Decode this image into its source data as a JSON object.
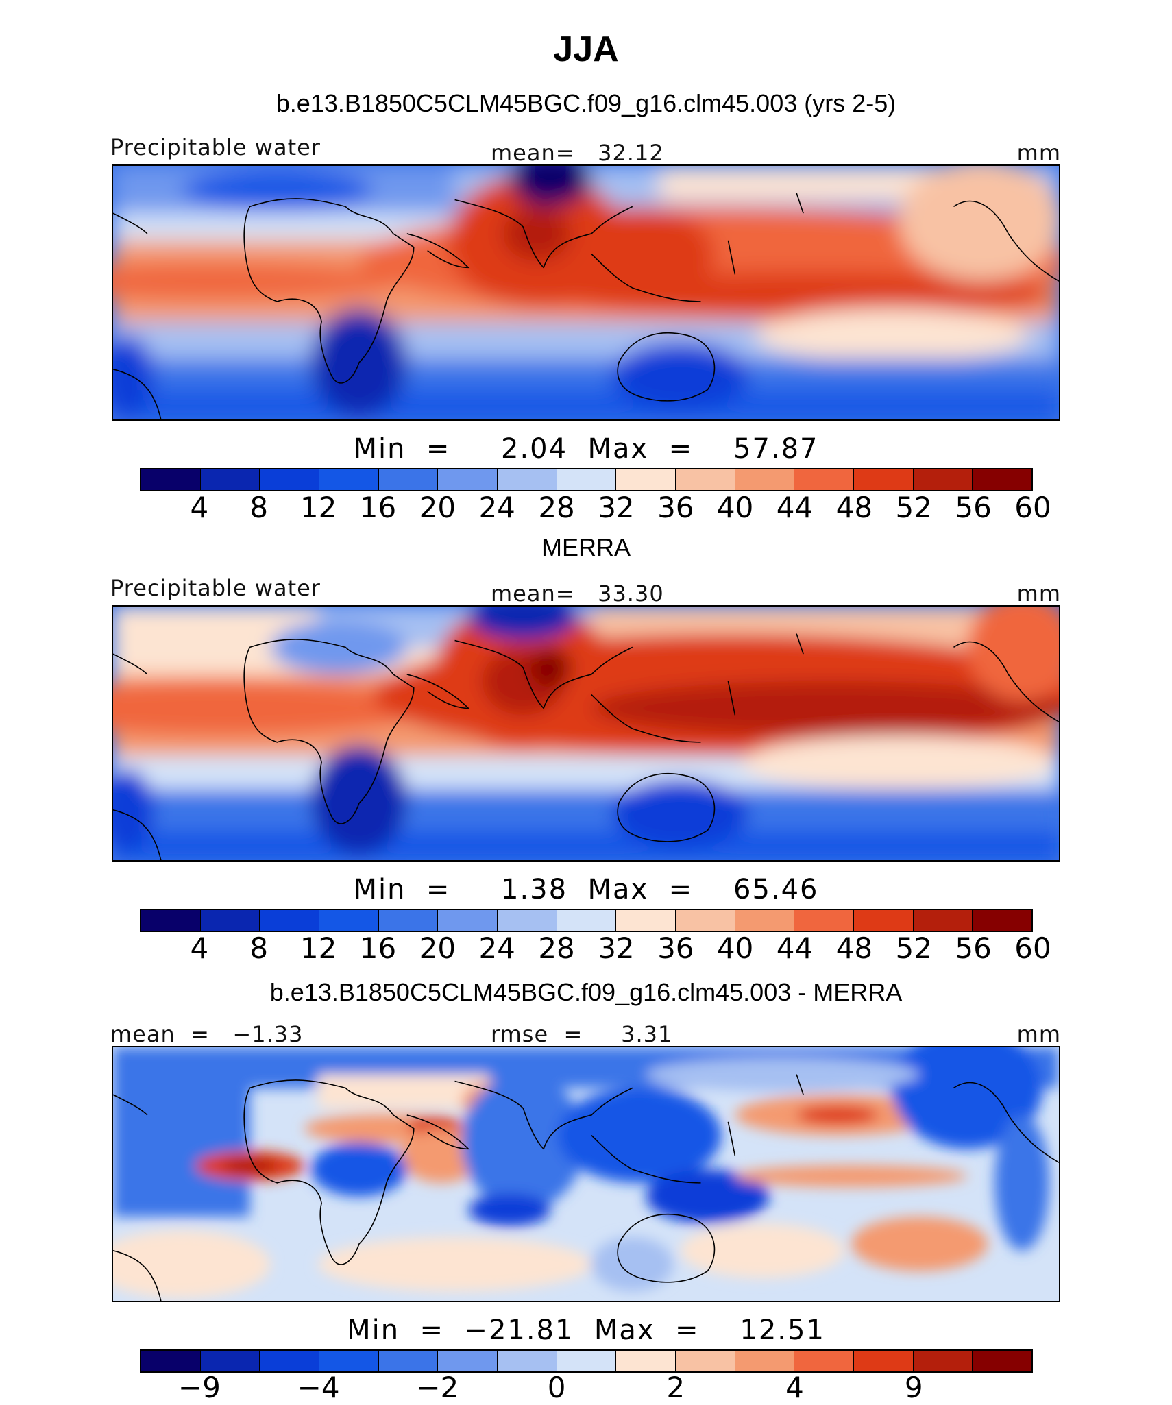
{
  "figure": {
    "title": "JJA"
  },
  "panels": [
    {
      "title": "b.e13.B1850C5CLM45BGC.f09_g16.clm45.003 (yrs 2-5)",
      "left_label": "Precipitable water",
      "center_label": "mean=   32.12",
      "right_label": "mm",
      "minmax": "Min  =     2.04  Max  =    57.87",
      "colorbar": "abs",
      "tick_labels": [
        "4",
        "8",
        "12",
        "16",
        "20",
        "24",
        "28",
        "32",
        "36",
        "40",
        "44",
        "48",
        "52",
        "56",
        "60"
      ]
    },
    {
      "title": "MERRA",
      "left_label": "Precipitable water",
      "center_label": "mean=   33.30",
      "right_label": "mm",
      "minmax": "Min  =     1.38  Max  =    65.46",
      "colorbar": "abs",
      "tick_labels": [
        "4",
        "8",
        "12",
        "16",
        "20",
        "24",
        "28",
        "32",
        "36",
        "40",
        "44",
        "48",
        "52",
        "56",
        "60"
      ]
    },
    {
      "title": "b.e13.B1850C5CLM45BGC.f09_g16.clm45.003 - MERRA",
      "left_label": "mean  =   −1.33",
      "center_label": "rmse  =     3.31",
      "right_label": "mm",
      "minmax": "Min  =  −21.81  Max  =    12.51",
      "colorbar": "diff",
      "tick_labels": [
        "−9",
        "−4",
        "−2",
        "0",
        "2",
        "4",
        "9"
      ]
    }
  ],
  "colormap": [
    "#08006a",
    "#0a26b0",
    "#0a3ed8",
    "#1457e6",
    "#3b74e8",
    "#6f98ee",
    "#a6c0f2",
    "#d4e3f8",
    "#fde4d2",
    "#f8c2a4",
    "#f49a70",
    "#f0663e",
    "#de3a16",
    "#b41f0c",
    "#860000"
  ],
  "chart_data": [
    {
      "type": "heatmap",
      "variable": "Precipitable water",
      "units": "mm",
      "season": "JJA",
      "source": "b.e13.B1850C5CLM45BGC.f09_g16.clm45.003 (yrs 2-5)",
      "mean": 32.12,
      "min": 2.04,
      "max": 57.87,
      "levels": [
        4,
        8,
        12,
        16,
        20,
        24,
        28,
        32,
        36,
        40,
        44,
        48,
        52,
        56,
        60
      ]
    },
    {
      "type": "heatmap",
      "variable": "Precipitable water",
      "units": "mm",
      "season": "JJA",
      "source": "MERRA",
      "mean": 33.3,
      "min": 1.38,
      "max": 65.46,
      "levels": [
        4,
        8,
        12,
        16,
        20,
        24,
        28,
        32,
        36,
        40,
        44,
        48,
        52,
        56,
        60
      ]
    },
    {
      "type": "heatmap",
      "variable": "difference",
      "units": "mm",
      "season": "JJA",
      "source": "b.e13.B1850C5CLM45BGC.f09_g16.clm45.003 - MERRA",
      "mean": -1.33,
      "rmse": 3.31,
      "min": -21.81,
      "max": 12.51,
      "levels": [
        -9,
        -4,
        -2,
        0,
        2,
        4,
        9
      ]
    }
  ]
}
